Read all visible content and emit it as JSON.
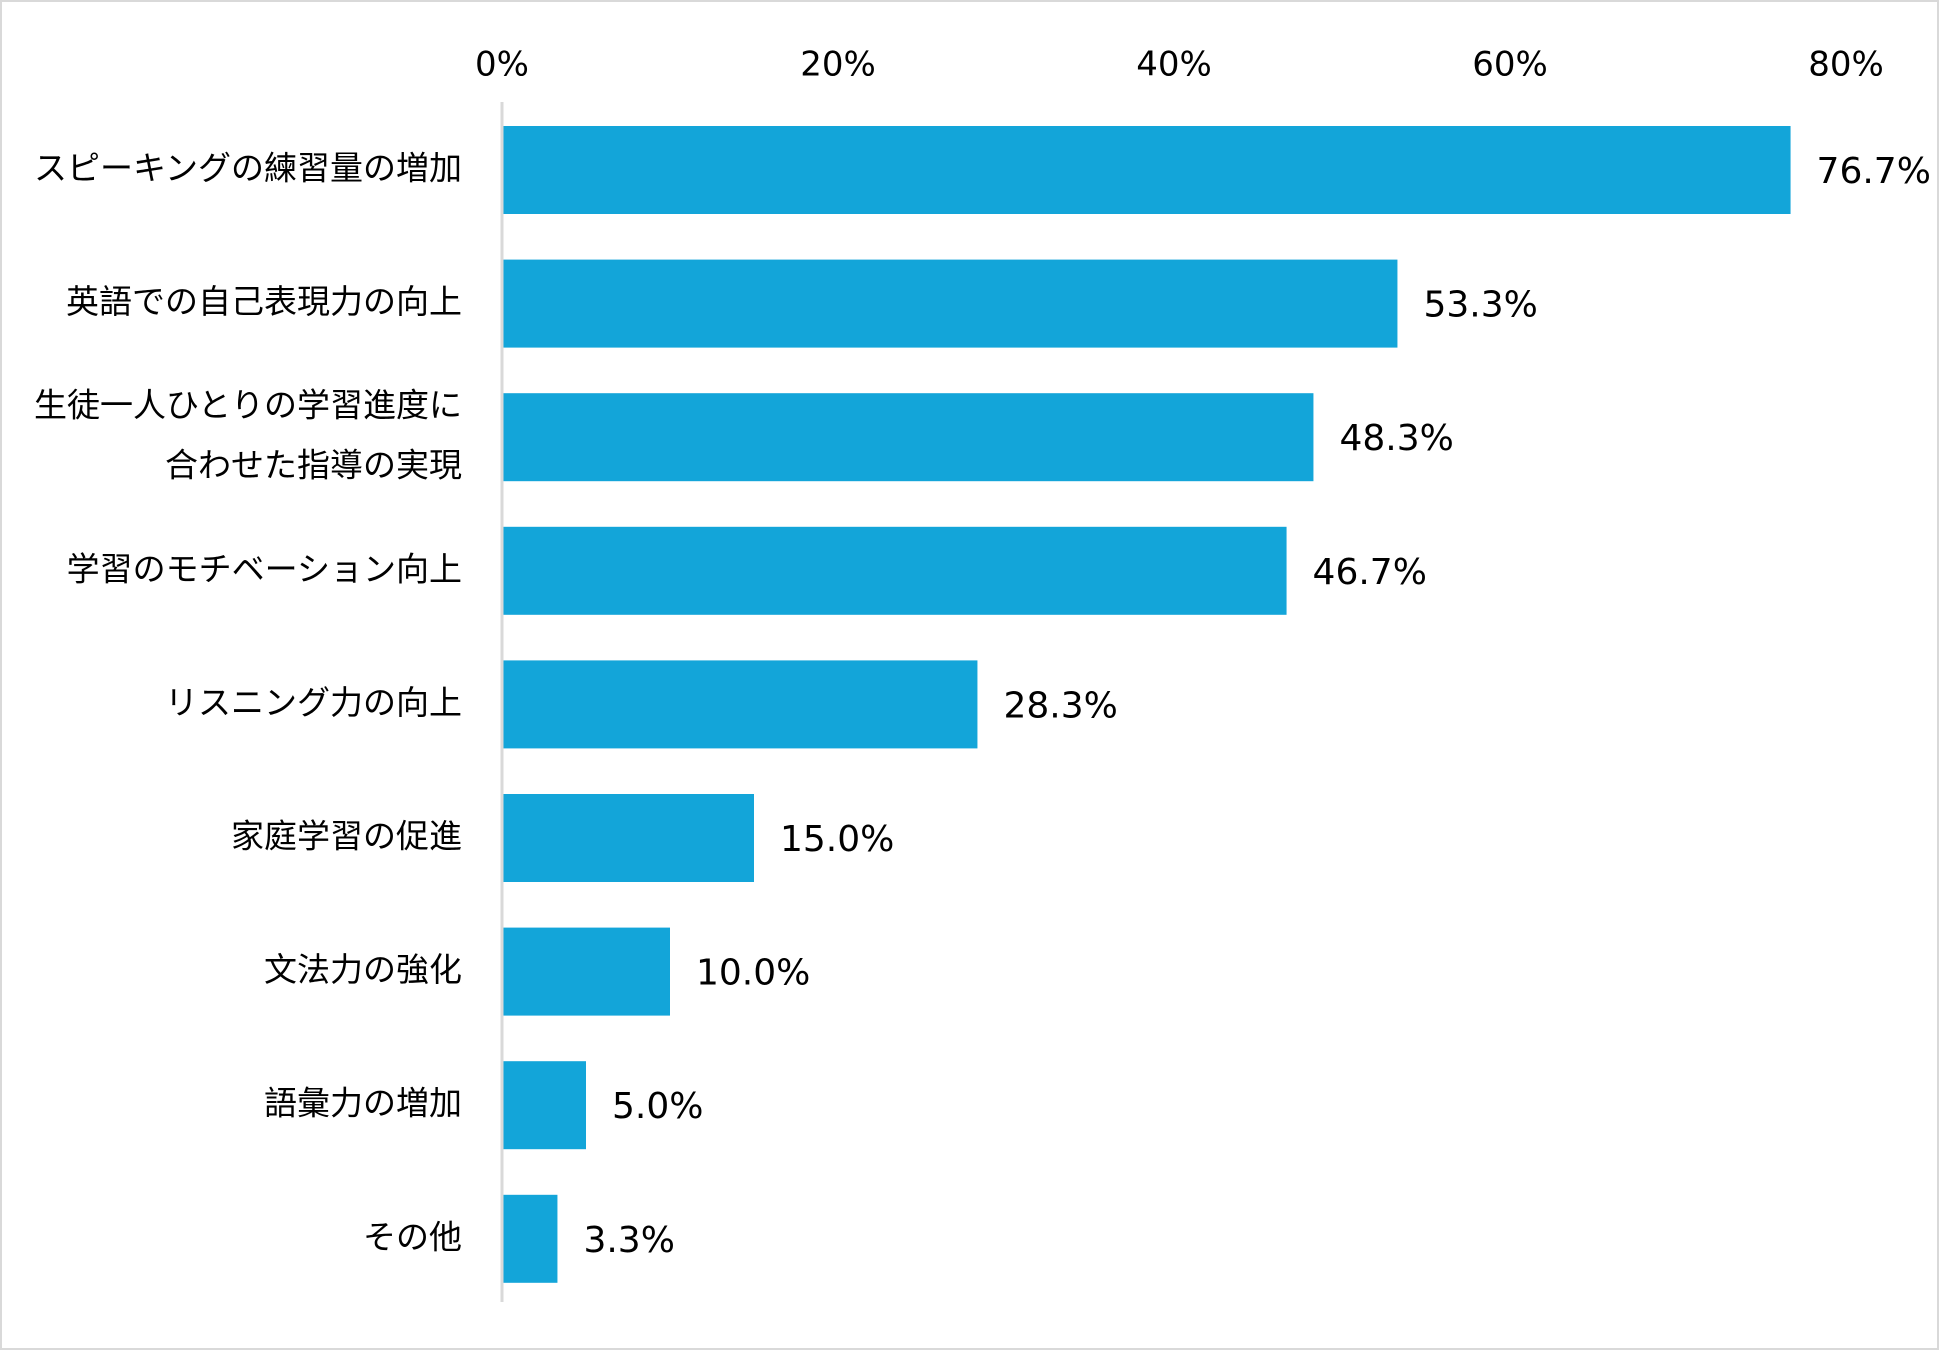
{
  "chart_data": {
    "type": "bar",
    "orientation": "horizontal",
    "title": "",
    "xlabel": "",
    "ylabel": "",
    "xlim": [
      0,
      80
    ],
    "x_ticks": [
      0,
      20,
      40,
      60,
      80
    ],
    "x_tick_labels": [
      "0%",
      "20%",
      "40%",
      "60%",
      "80%"
    ],
    "x_axis_position": "top",
    "grid": false,
    "legend": "none",
    "bar_color": "#13a5d9",
    "categories": [
      [
        "スピーキングの練習量の増加"
      ],
      [
        "英語での自己表現力の向上"
      ],
      [
        "生徒一人ひとりの学習進度に",
        "合わせた指導の実現"
      ],
      [
        "学習のモチベーション向上"
      ],
      [
        "リスニング力の向上"
      ],
      [
        "家庭学習の促進"
      ],
      [
        "文法力の強化"
      ],
      [
        "語彙力の増加"
      ],
      [
        "その他"
      ]
    ],
    "values": [
      76.7,
      53.3,
      48.3,
      46.7,
      28.3,
      15.0,
      10.0,
      5.0,
      3.3
    ],
    "value_labels": [
      "76.7%",
      "53.3%",
      "48.3%",
      "46.7%",
      "28.3%",
      "15.0%",
      "10.0%",
      "5.0%",
      "3.3%"
    ]
  }
}
